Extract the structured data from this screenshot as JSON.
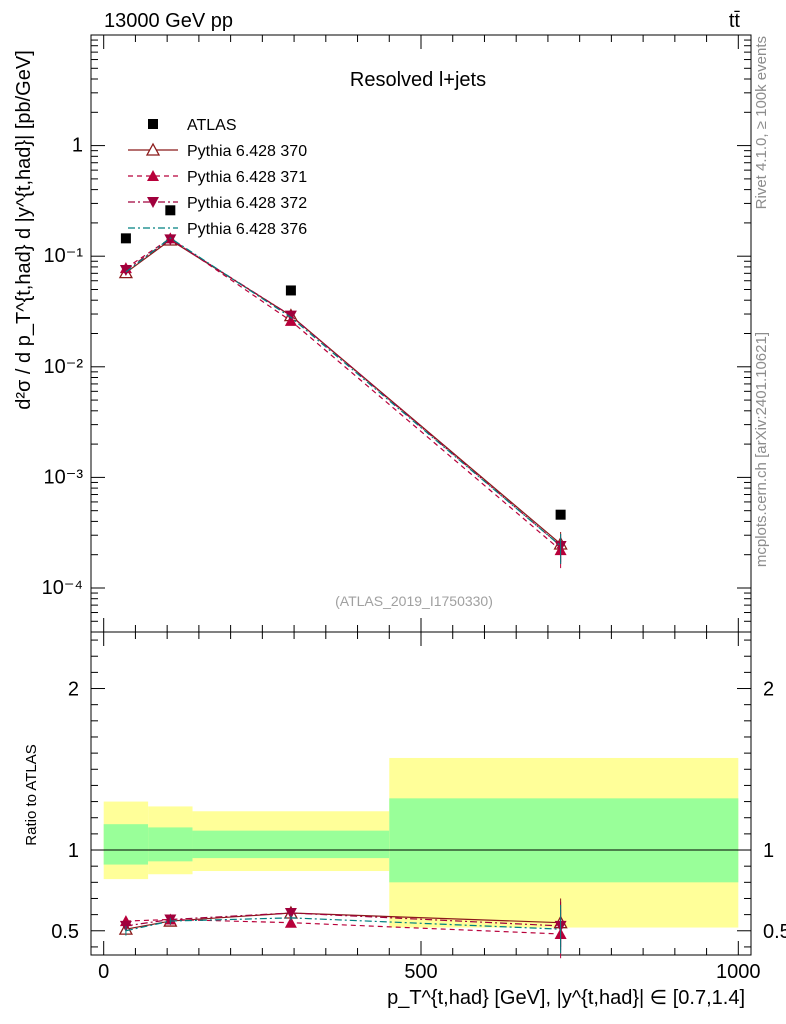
{
  "header": {
    "left": "13000 GeV pp",
    "right": "tt̄",
    "side_top": "Rivet 4.1.0, ≥ 100k events",
    "side_bottom": "mcplots.cern.ch [arXiv:2401.10621]"
  },
  "chart_data": [
    {
      "type": "scatter",
      "panel": "main",
      "title": "Resolved l+jets",
      "ref_label": "(ATLAS_2019_I1750330)",
      "ylabel": "d²σ / d p_T^{t,had} d |y^{t,had}| [pb/GeV]",
      "yscale": "log",
      "ylim": [
        4e-05,
        10
      ],
      "xlim": [
        -20,
        1020
      ],
      "y_tick_labels": [
        "10⁻⁴",
        "10⁻³",
        "10⁻²",
        "10⁻¹",
        "1"
      ],
      "legend_position": "top-left",
      "data": {
        "name": "ATLAS",
        "x": [
          35,
          105,
          295,
          720
        ],
        "y": [
          0.145,
          0.26,
          0.049,
          0.00046
        ],
        "color": "#000000"
      },
      "series": [
        {
          "name": "Pythia 6.428 370",
          "x": [
            35,
            105,
            295,
            720
          ],
          "y": [
            0.071,
            0.14,
            0.029,
            0.00025
          ],
          "color": "#8b1a1a",
          "marker": "triangle-up-open",
          "dash": "solid"
        },
        {
          "name": "Pythia 6.428 371",
          "x": [
            35,
            105,
            295,
            720
          ],
          "y": [
            0.078,
            0.145,
            0.026,
            0.00022
          ],
          "color": "#b8003a",
          "marker": "triangle-up",
          "dash": "dashed"
        },
        {
          "name": "Pythia 6.428 372",
          "x": [
            35,
            105,
            295,
            720
          ],
          "y": [
            0.075,
            0.142,
            0.029,
            0.00024
          ],
          "color": "#a0003c",
          "marker": "triangle-down",
          "dash": "dashdot"
        },
        {
          "name": "Pythia 6.428 376",
          "x": [
            35,
            105,
            295,
            720
          ],
          "y": [
            0.072,
            0.146,
            0.028,
            0.00024
          ],
          "color": "#008080",
          "marker": "none",
          "dash": "dashdot"
        }
      ]
    },
    {
      "type": "scatter",
      "panel": "ratio",
      "ylabel": "Ratio to ATLAS",
      "xlabel": "p_T^{t,had} [GeV], |y^{t,had}| ∈ [0.7,1.4]",
      "ylim": [
        0.35,
        2.35
      ],
      "xlim": [
        -20,
        1020
      ],
      "y_ticks": [
        0.5,
        1,
        2
      ],
      "x_ticks": [
        0,
        500,
        1000
      ],
      "bins": [
        {
          "xlo": 0,
          "xhi": 70,
          "stat_lo": 0.91,
          "stat_hi": 1.16,
          "tot_lo": 0.82,
          "tot_hi": 1.3
        },
        {
          "xlo": 70,
          "xhi": 140,
          "stat_lo": 0.93,
          "stat_hi": 1.14,
          "tot_lo": 0.85,
          "tot_hi": 1.27
        },
        {
          "xlo": 140,
          "xhi": 450,
          "stat_lo": 0.95,
          "stat_hi": 1.12,
          "tot_lo": 0.87,
          "tot_hi": 1.24
        },
        {
          "xlo": 450,
          "xhi": 1000,
          "stat_lo": 0.8,
          "stat_hi": 1.32,
          "tot_lo": 0.52,
          "tot_hi": 1.57
        }
      ],
      "series": [
        {
          "name": "Pythia 6.428 370",
          "x": [
            35,
            105,
            295,
            720
          ],
          "y": [
            0.51,
            0.56,
            0.61,
            0.55
          ],
          "err": [
            0.03,
            0.02,
            0.015,
            0.15
          ]
        },
        {
          "name": "Pythia 6.428 371",
          "x": [
            35,
            105,
            295,
            720
          ],
          "y": [
            0.56,
            0.57,
            0.55,
            0.48
          ],
          "err": [
            0.03,
            0.02,
            0.015,
            0.15
          ]
        },
        {
          "name": "Pythia 6.428 372",
          "x": [
            35,
            105,
            295,
            720
          ],
          "y": [
            0.53,
            0.57,
            0.61,
            0.53
          ],
          "err": [
            0.03,
            0.02,
            0.015,
            0.15
          ]
        },
        {
          "name": "Pythia 6.428 376",
          "x": [
            35,
            105,
            295,
            720
          ],
          "y": [
            0.5,
            0.56,
            0.58,
            0.51
          ],
          "err": [
            0.03,
            0.02,
            0.015,
            0.15
          ]
        }
      ]
    }
  ]
}
